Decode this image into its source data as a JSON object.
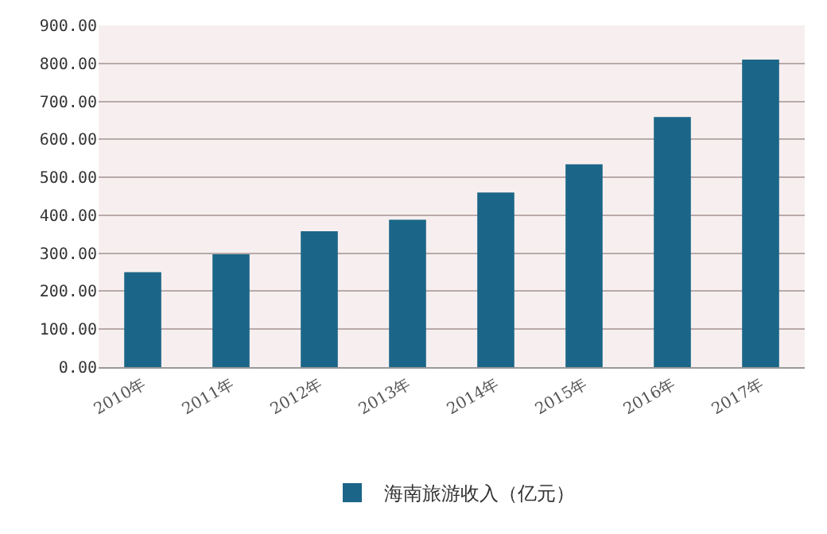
{
  "chart_data": {
    "type": "bar",
    "categories": [
      "2010年",
      "2011年",
      "2012年",
      "2013年",
      "2014年",
      "2015年",
      "2016年",
      "2017年"
    ],
    "series": [
      {
        "name": "海南旅游收入（亿元）",
        "color": "#1b6688",
        "values": [
          250,
          297,
          358,
          388,
          460,
          534,
          659,
          810
        ]
      }
    ],
    "ylim": [
      0,
      900
    ],
    "yticks": [
      {
        "value": 0,
        "label": "0.00"
      },
      {
        "value": 100,
        "label": "100.00"
      },
      {
        "value": 200,
        "label": "200.00"
      },
      {
        "value": 300,
        "label": "300.00"
      },
      {
        "value": 400,
        "label": "400.00"
      },
      {
        "value": 500,
        "label": "500.00"
      },
      {
        "value": 600,
        "label": "600.00"
      },
      {
        "value": 700,
        "label": "700.00"
      },
      {
        "value": 800,
        "label": "800.00"
      },
      {
        "value": 900,
        "label": "900.00"
      }
    ],
    "grid": "y",
    "legend": "bottom"
  }
}
